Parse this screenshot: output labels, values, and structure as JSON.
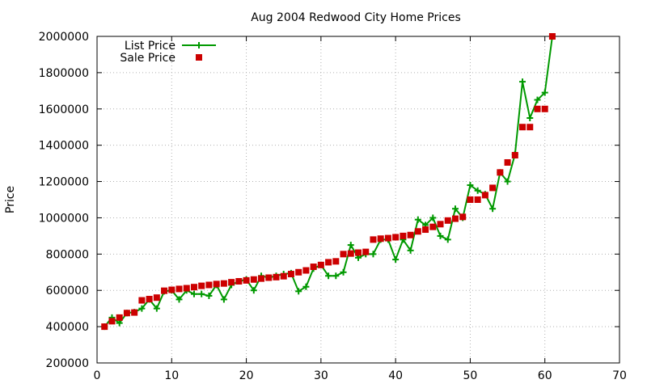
{
  "chart_data": {
    "type": "line",
    "title": "Aug 2004 Redwood City Home Prices",
    "xlabel": "",
    "ylabel": "Price",
    "xlim": [
      0,
      70
    ],
    "ylim": [
      200000,
      2000000
    ],
    "x_ticks": [
      "0",
      "10",
      "20",
      "30",
      "40",
      "50",
      "60",
      "70"
    ],
    "y_ticks": [
      "200000",
      "400000",
      "600000",
      "800000",
      "1000000",
      "1200000",
      "1400000",
      "1600000",
      "1800000",
      "2000000"
    ],
    "grid": true,
    "legend_position": "top-left",
    "series": [
      {
        "name": "List Price",
        "style": "line+cross",
        "color": "#009900",
        "x": [
          1,
          2,
          3,
          4,
          5,
          6,
          7,
          8,
          9,
          10,
          11,
          12,
          13,
          14,
          15,
          16,
          17,
          18,
          19,
          20,
          21,
          22,
          23,
          24,
          25,
          26,
          27,
          28,
          29,
          30,
          31,
          32,
          33,
          34,
          35,
          36,
          37,
          38,
          39,
          40,
          41,
          42,
          43,
          44,
          45,
          46,
          47,
          48,
          49,
          50,
          51,
          52,
          53,
          54,
          55,
          56,
          57,
          58,
          59,
          60,
          61
        ],
        "y": [
          400000,
          450000,
          420000,
          475000,
          480000,
          500000,
          550000,
          500000,
          595000,
          600000,
          550000,
          600000,
          580000,
          580000,
          570000,
          630000,
          550000,
          630000,
          650000,
          660000,
          600000,
          680000,
          670000,
          680000,
          690000,
          695000,
          595000,
          620000,
          720000,
          740000,
          680000,
          680000,
          700000,
          850000,
          780000,
          800000,
          800000,
          880000,
          880000,
          770000,
          880000,
          820000,
          990000,
          960000,
          1000000,
          900000,
          880000,
          1050000,
          1000000,
          1180000,
          1150000,
          1130000,
          1050000,
          1250000,
          1200000,
          1350000,
          1750000,
          1550000,
          1650000,
          1690000,
          2000000
        ]
      },
      {
        "name": "Sale Price",
        "style": "square",
        "color": "#cc0000",
        "x": [
          1,
          2,
          3,
          4,
          5,
          6,
          7,
          8,
          9,
          10,
          11,
          12,
          13,
          14,
          15,
          16,
          17,
          18,
          19,
          20,
          21,
          22,
          23,
          24,
          25,
          26,
          27,
          28,
          29,
          30,
          31,
          32,
          33,
          34,
          35,
          36,
          37,
          38,
          39,
          40,
          41,
          42,
          43,
          44,
          45,
          46,
          47,
          48,
          49,
          50,
          51,
          52,
          53,
          54,
          55,
          56,
          57,
          58,
          59,
          60,
          61
        ],
        "y": [
          400000,
          430000,
          450000,
          475000,
          478000,
          545000,
          552000,
          560000,
          598000,
          603000,
          608000,
          612000,
          618000,
          625000,
          630000,
          635000,
          638000,
          645000,
          650000,
          655000,
          660000,
          665000,
          670000,
          673000,
          678000,
          690000,
          700000,
          710000,
          730000,
          740000,
          755000,
          760000,
          800000,
          803000,
          808000,
          812000,
          880000,
          885000,
          888000,
          893000,
          900000,
          905000,
          925000,
          935000,
          950000,
          965000,
          985000,
          995000,
          1005000,
          1100000,
          1100000,
          1125000,
          1165000,
          1250000,
          1305000,
          1345000,
          1500000,
          1500000,
          1600000,
          1600000,
          2000000
        ]
      }
    ]
  }
}
